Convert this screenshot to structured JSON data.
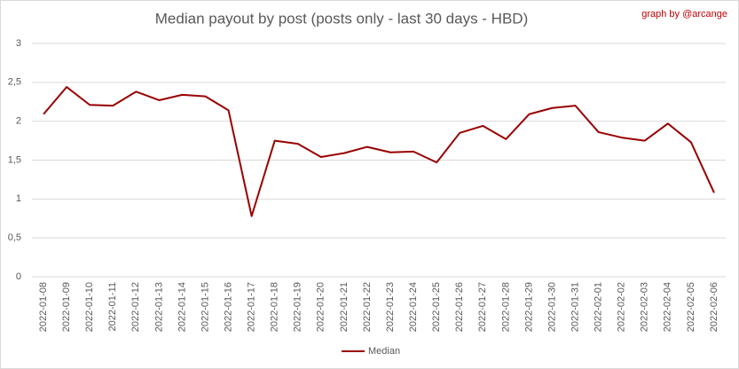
{
  "chart_data": {
    "type": "line",
    "title": "Median payout by post (posts only - last 30 days - HBD)",
    "annotation": "graph by @arcange",
    "categories": [
      "2022-01-08",
      "2022-01-09",
      "2022-01-10",
      "2022-01-11",
      "2022-01-12",
      "2022-01-13",
      "2022-01-14",
      "2022-01-15",
      "2022-01-16",
      "2022-01-17",
      "2022-01-18",
      "2022-01-19",
      "2022-01-20",
      "2022-01-21",
      "2022-01-22",
      "2022-01-23",
      "2022-01-24",
      "2022-01-25",
      "2022-01-26",
      "2022-01-27",
      "2022-01-28",
      "2022-01-29",
      "2022-01-30",
      "2022-01-31",
      "2022-02-01",
      "2022-02-02",
      "2022-02-03",
      "2022-02-04",
      "2022-02-05",
      "2022-02-06"
    ],
    "series": [
      {
        "name": "Median",
        "color": "#990000",
        "values": [
          2.09,
          2.44,
          2.21,
          2.2,
          2.38,
          2.27,
          2.34,
          2.32,
          2.14,
          0.78,
          1.75,
          1.71,
          1.54,
          1.59,
          1.67,
          1.6,
          1.61,
          1.47,
          1.85,
          1.94,
          1.77,
          2.09,
          2.17,
          2.2,
          1.86,
          1.79,
          1.75,
          1.97,
          1.73,
          1.08
        ]
      }
    ],
    "ylim": [
      0,
      3
    ],
    "yticks": [
      0,
      {
        "value": 0.5,
        "label": "0,5"
      },
      1,
      {
        "value": 1.5,
        "label": "1,5"
      },
      2,
      {
        "value": 2.5,
        "label": "2,5"
      },
      3
    ],
    "grid": true,
    "legend": "bottom"
  }
}
